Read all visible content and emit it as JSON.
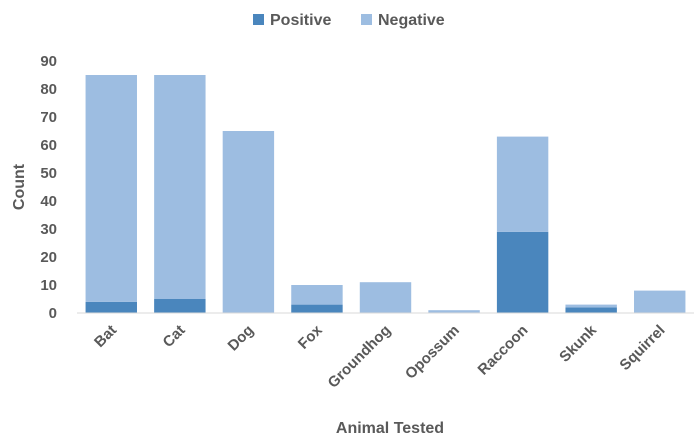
{
  "chart_data": {
    "type": "bar",
    "stacked": true,
    "categories": [
      "Bat",
      "Cat",
      "Dog",
      "Fox",
      "Groundhog",
      "Opossum",
      "Raccoon",
      "Skunk",
      "Squirrel"
    ],
    "series": [
      {
        "name": "Positive",
        "values": [
          4,
          5,
          0,
          3,
          0,
          0,
          29,
          2,
          0
        ],
        "color": "#4a86bd"
      },
      {
        "name": "Negative",
        "values": [
          81,
          80,
          65,
          7,
          11,
          1,
          34,
          1,
          8
        ],
        "color": "#9dbde1"
      }
    ],
    "xlabel": "Animal Tested",
    "ylabel": "Count",
    "ylim": [
      0,
      90
    ],
    "yticks": [
      0,
      10,
      20,
      30,
      40,
      50,
      60,
      70,
      80,
      90
    ],
    "legend_position": "top-center",
    "grid": false
  }
}
